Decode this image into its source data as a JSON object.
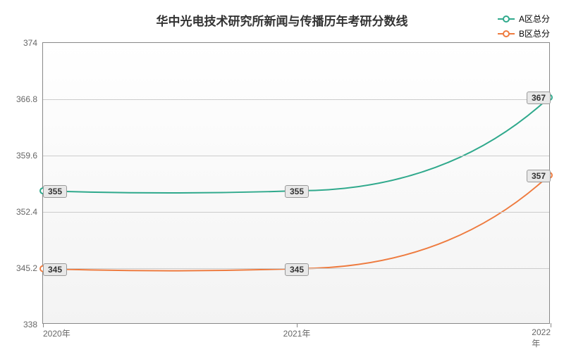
{
  "chart": {
    "type": "line",
    "title": "华中光电技术研究所新闻与传播历年考研分数线",
    "title_fontsize": 17,
    "title_color": "#333333",
    "background_top": "#ffffff",
    "background_bottom": "#f3f3f3",
    "plot_border_color": "#888888",
    "grid_color": "#cccccc",
    "x_categories": [
      "2020年",
      "2021年",
      "2022年"
    ],
    "x_positions": [
      0,
      0.5,
      1
    ],
    "y_min": 338,
    "y_max": 374,
    "y_ticks": [
      338,
      345.2,
      352.4,
      359.6,
      366.8,
      374
    ],
    "label_fontsize": 12,
    "label_color": "#666666",
    "series": [
      {
        "name": "A区总分",
        "color": "#2fa98c",
        "values": [
          355,
          355,
          367
        ],
        "line_width": 2,
        "marker_radius": 4,
        "marker_fill": "#ffffff"
      },
      {
        "name": "B区总分",
        "color": "#ee7b3f",
        "values": [
          345,
          345,
          357
        ],
        "line_width": 2,
        "marker_radius": 4,
        "marker_fill": "#ffffff"
      }
    ],
    "data_label_bg": "#e8e8e8",
    "data_label_border": "#999999",
    "data_label_fontsize": 12
  }
}
